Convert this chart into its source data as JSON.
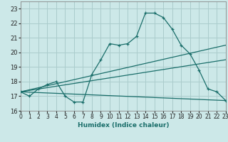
{
  "xlabel": "Humidex (Indice chaleur)",
  "background_color": "#cce8e8",
  "grid_color": "#aacccc",
  "line_color": "#1a6e6a",
  "xlim": [
    0,
    23
  ],
  "ylim": [
    16,
    23.5
  ],
  "xticks": [
    0,
    1,
    2,
    3,
    4,
    5,
    6,
    7,
    8,
    9,
    10,
    11,
    12,
    13,
    14,
    15,
    16,
    17,
    18,
    19,
    20,
    21,
    22,
    23
  ],
  "yticks": [
    16,
    17,
    18,
    19,
    20,
    21,
    22,
    23
  ],
  "series1": [
    17.3,
    17.0,
    17.5,
    17.8,
    18.0,
    17.0,
    16.6,
    16.6,
    18.5,
    19.5,
    20.6,
    20.5,
    20.6,
    21.1,
    22.7,
    22.7,
    22.4,
    21.6,
    20.5,
    19.9,
    18.8,
    17.5,
    17.3,
    16.7
  ],
  "line2": {
    "x": [
      0,
      23
    ],
    "y": [
      17.3,
      20.5
    ]
  },
  "line3": {
    "x": [
      0,
      23
    ],
    "y": [
      17.3,
      19.5
    ]
  },
  "line4": {
    "x": [
      0,
      23
    ],
    "y": [
      17.3,
      16.7
    ]
  },
  "xlabel_fontsize": 6.5,
  "xlabel_color": "#1a6e6a",
  "tick_fontsize": 5.5
}
